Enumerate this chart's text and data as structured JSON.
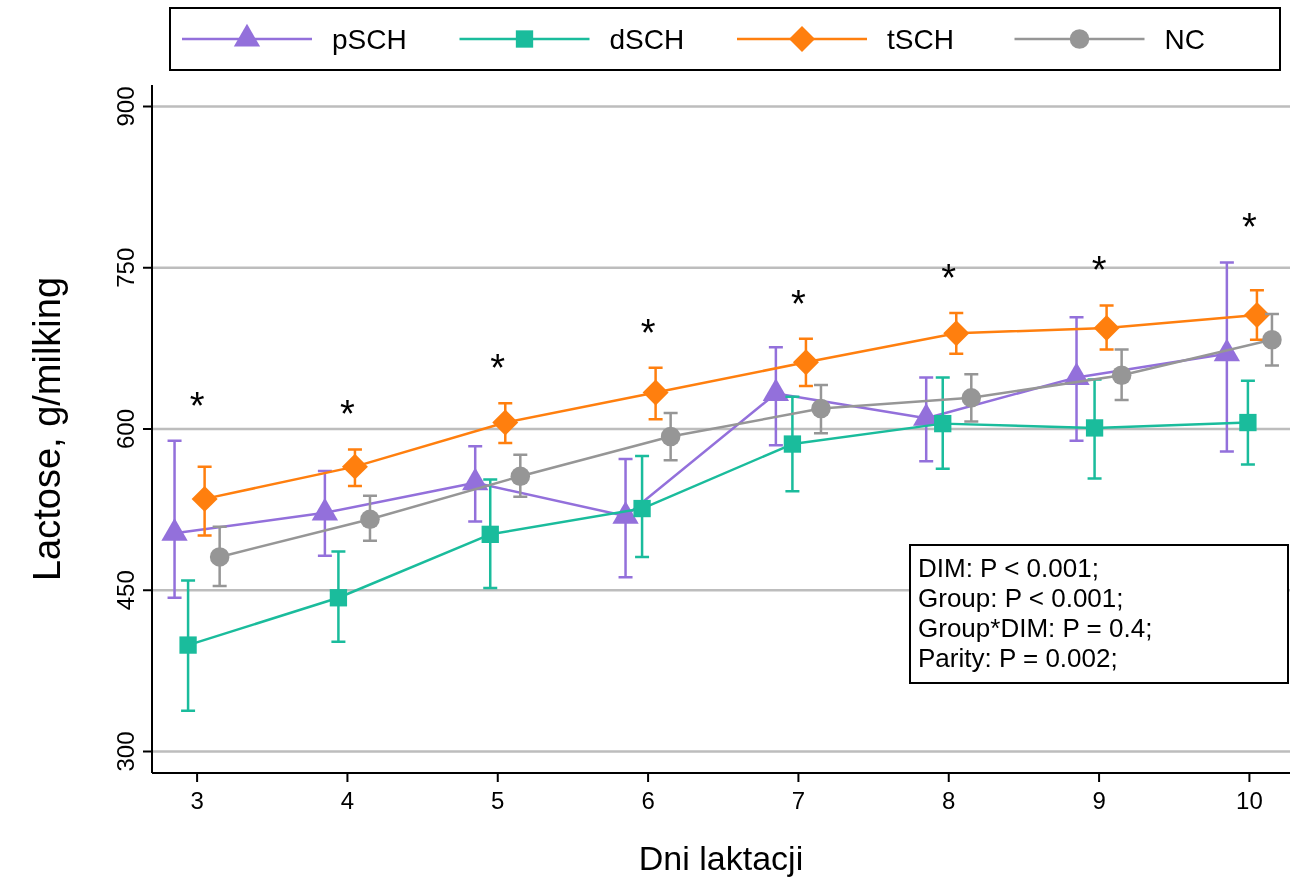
{
  "chart_data": {
    "type": "line",
    "xlabel": "Dni laktacji",
    "ylabel": "Lactose, g/milking",
    "xlim": [
      2.7,
      10.27
    ],
    "xticks": [
      3,
      4,
      5,
      6,
      7,
      8,
      9,
      10
    ],
    "ylim": [
      280,
      920
    ],
    "yticks": [
      300,
      450,
      600,
      750,
      900
    ],
    "grid": "y",
    "legend": "top",
    "series": [
      {
        "name": "pSCH",
        "color": "#9370db",
        "marker": "triangle",
        "x": [
          2.85,
          3.85,
          4.85,
          5.85,
          6.85,
          7.85,
          8.85,
          9.85
        ],
        "values": [
          503,
          522,
          550,
          519,
          633,
          610,
          648,
          670
        ],
        "errors": [
          [
            443,
            589
          ],
          [
            482,
            561
          ],
          [
            514,
            584
          ],
          [
            462,
            572
          ],
          [
            585,
            676
          ],
          [
            570,
            648
          ],
          [
            589,
            704
          ],
          [
            579,
            755
          ]
        ]
      },
      {
        "name": "dSCH",
        "color": "#1abc9c",
        "marker": "square",
        "x": [
          2.94,
          3.94,
          4.95,
          5.96,
          6.96,
          7.96,
          8.97,
          9.99
        ],
        "values": [
          399,
          443,
          502,
          526,
          586,
          605,
          601,
          606
        ],
        "errors": [
          [
            338,
            459
          ],
          [
            402,
            486
          ],
          [
            452,
            553
          ],
          [
            481,
            575
          ],
          [
            542,
            630
          ],
          [
            563,
            648
          ],
          [
            554,
            646
          ],
          [
            567,
            645
          ]
        ]
      },
      {
        "name": "tSCH",
        "color": "#ff7f0e",
        "marker": "diamond",
        "x": [
          3.05,
          4.05,
          5.05,
          6.05,
          7.05,
          8.05,
          9.05,
          10.05
        ],
        "values": [
          535,
          565,
          606,
          634,
          662,
          689,
          694,
          706
        ],
        "errors": [
          [
            501,
            565
          ],
          [
            547,
            581
          ],
          [
            587,
            624
          ],
          [
            609,
            657
          ],
          [
            640,
            684
          ],
          [
            670,
            708
          ],
          [
            674,
            715
          ],
          [
            683,
            729
          ]
        ]
      },
      {
        "name": "NC",
        "color": "#969696",
        "marker": "circle",
        "x": [
          3.15,
          4.15,
          5.15,
          6.15,
          7.15,
          8.15,
          9.15,
          10.15
        ],
        "values": [
          481,
          516,
          556,
          593,
          619,
          629,
          650,
          683
        ],
        "errors": [
          [
            454,
            509
          ],
          [
            496,
            538
          ],
          [
            537,
            576
          ],
          [
            571,
            615
          ],
          [
            596,
            641
          ],
          [
            607,
            651
          ],
          [
            627,
            674
          ],
          [
            659,
            707
          ]
        ]
      }
    ],
    "annotations": [
      "*",
      "*",
      "*",
      "*",
      "*",
      "*",
      "*",
      "*",
      "DIM: P < 0.001;\nGroup: P < 0.001;\nGroup*DIM: P = 0.4;\nParity: P = 0.002;"
    ]
  }
}
